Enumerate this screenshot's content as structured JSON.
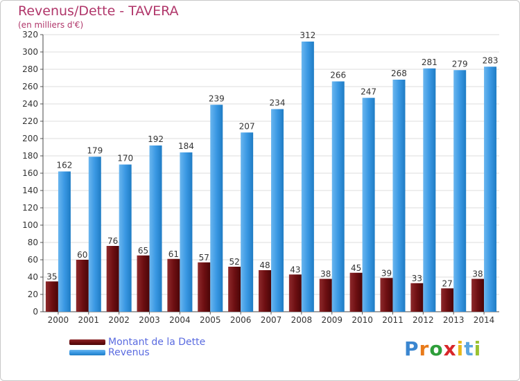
{
  "header": {
    "title": "Revenus/Dette - TAVERA",
    "subtitle": "(en milliers d'€)"
  },
  "legend": {
    "debt_label": "Montant de la Dette",
    "revenue_label": "Revenus"
  },
  "logo": {
    "text": "Proxiti",
    "letters": [
      "P",
      "r",
      "o",
      "x",
      "i",
      "t",
      "i"
    ],
    "colors": [
      "#3a86d0",
      "#e87a1a",
      "#2e9e3a",
      "#d8262a",
      "#e8b81a",
      "#5aa5e0",
      "#9ac230"
    ]
  },
  "colors": {
    "debt": "#6e0f12",
    "revenue": "#3a98e3",
    "title": "#b0366a",
    "legend_text": "#5a6be0"
  },
  "chart_data": {
    "type": "bar",
    "categories": [
      "2000",
      "2001",
      "2002",
      "2003",
      "2004",
      "2005",
      "2006",
      "2007",
      "2008",
      "2009",
      "2010",
      "2011",
      "2012",
      "2013",
      "2014"
    ],
    "series": [
      {
        "name": "Montant de la Dette",
        "values": [
          35,
          60,
          76,
          65,
          61,
          57,
          52,
          48,
          43,
          38,
          45,
          39,
          33,
          27,
          38
        ]
      },
      {
        "name": "Revenus",
        "values": [
          162,
          179,
          170,
          192,
          184,
          239,
          207,
          234,
          312,
          266,
          247,
          268,
          281,
          279,
          283
        ]
      }
    ],
    "ylim": [
      0,
      320
    ],
    "yticks": [
      0,
      20,
      40,
      60,
      80,
      100,
      120,
      140,
      160,
      180,
      200,
      220,
      240,
      260,
      280,
      300,
      320
    ],
    "grid": true,
    "legend_position": "bottom-left"
  }
}
